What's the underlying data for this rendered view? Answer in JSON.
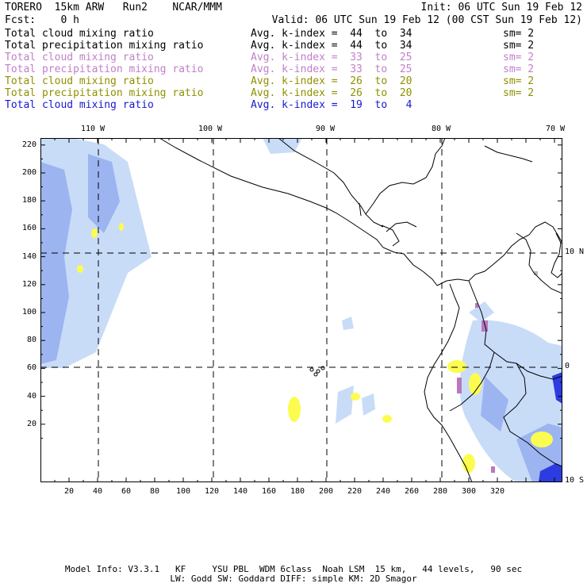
{
  "header": {
    "line1_left": "TORERO  15km ARW   Run2    NCAR/MMM",
    "line1_right": "Init: 06 UTC Sun 19 Feb 12",
    "line2_left": "Fcst:    0 h",
    "line2_right": "Valid: 06 UTC Sun 19 Feb 12 (00 CST Sun 19 Feb 12)"
  },
  "legend": [
    {
      "name": "Total cloud mixing ratio",
      "stat": "Avg. k-index =  44  to  34",
      "sm": "sm= 2",
      "color": "#000000"
    },
    {
      "name": "Total precipitation mixing ratio",
      "stat": "Avg. k-index =  44  to  34",
      "sm": "sm= 2",
      "color": "#000000"
    },
    {
      "name": "Total cloud mixing ratio",
      "stat": "Avg. k-index =  33  to  25",
      "sm": "sm= 2",
      "color": "#c080c8"
    },
    {
      "name": "Total precipitation mixing ratio",
      "stat": "Avg. k-index =  33  to  25",
      "sm": "sm= 2",
      "color": "#c080c8"
    },
    {
      "name": "Total cloud mixing ratio",
      "stat": "Avg. k-index =  26  to  20",
      "sm": "sm= 2",
      "color": "#909000"
    },
    {
      "name": "Total precipitation mixing ratio",
      "stat": "Avg. k-index =  26  to  20",
      "sm": "sm= 2",
      "color": "#909000"
    },
    {
      "name": "Total cloud mixing ratio",
      "stat": "Avg. k-index =  19  to   4",
      "sm": "",
      "color": "#1818d0"
    }
  ],
  "map": {
    "top_lon_labels": [
      "110 W",
      "100 W",
      "90 W",
      "80 W",
      "70 W"
    ],
    "right_lat_labels": [
      "10 N",
      "0",
      "10 S"
    ],
    "y_ticks": [
      "220",
      "200",
      "180",
      "160",
      "140",
      "120",
      "100",
      "80",
      "60",
      "40",
      "20"
    ],
    "x_ticks": [
      "20",
      "40",
      "60",
      "80",
      "100",
      "120",
      "140",
      "160",
      "180",
      "200",
      "220",
      "240",
      "260",
      "280",
      "300",
      "320"
    ],
    "colors": {
      "light_blue": "#c8dcf8",
      "mid_blue": "#9cb4f0",
      "dark_blue": "#2c3ce0",
      "yellow": "#fcfc50",
      "purple": "#b878c0",
      "gray": "#b8b8b8"
    }
  },
  "footer": {
    "line1": "Model Info: V3.3.1   KF     YSU PBL  WDM 6class  Noah LSM  15 km,   44 levels,   90 sec",
    "line2": "LW: Godd SW: Goddard DIFF: simple KM: 2D Smagor"
  }
}
